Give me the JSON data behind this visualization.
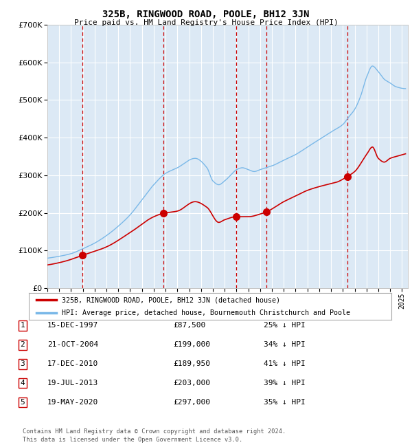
{
  "title": "325B, RINGWOOD ROAD, POOLE, BH12 3JN",
  "subtitle": "Price paid vs. HM Land Registry's House Price Index (HPI)",
  "footer1": "Contains HM Land Registry data © Crown copyright and database right 2024.",
  "footer2": "This data is licensed under the Open Government Licence v3.0.",
  "legend_line1": "325B, RINGWOOD ROAD, POOLE, BH12 3JN (detached house)",
  "legend_line2": "HPI: Average price, detached house, Bournemouth Christchurch and Poole",
  "sales": [
    {
      "num": 1,
      "date": "15-DEC-1997",
      "price": 87500,
      "pct": "25% ↓ HPI",
      "year": 1997.96
    },
    {
      "num": 2,
      "date": "21-OCT-2004",
      "price": 199000,
      "pct": "34% ↓ HPI",
      "year": 2004.8
    },
    {
      "num": 3,
      "date": "17-DEC-2010",
      "price": 189950,
      "pct": "41% ↓ HPI",
      "year": 2010.96
    },
    {
      "num": 4,
      "date": "19-JUL-2013",
      "price": 203000,
      "pct": "39% ↓ HPI",
      "year": 2013.54
    },
    {
      "num": 5,
      "date": "19-MAY-2020",
      "price": 297000,
      "pct": "35% ↓ HPI",
      "year": 2020.38
    }
  ],
  "hpi_color": "#7ab8e8",
  "sale_color": "#cc0000",
  "bg_color": "#dce9f5",
  "grid_color": "#ffffff",
  "vline_color": "#cc0000",
  "ylim": [
    0,
    700000
  ],
  "xlim_start": 1995.0,
  "xlim_end": 2025.5,
  "hpi_knots_x": [
    1995.0,
    1996.0,
    1997.0,
    1998.0,
    1999.0,
    2000.0,
    2001.0,
    2002.0,
    2003.0,
    2004.0,
    2005.0,
    2006.0,
    2007.5,
    2008.5,
    2009.0,
    2009.5,
    2010.0,
    2010.5,
    2011.0,
    2011.5,
    2012.0,
    2012.5,
    2013.0,
    2013.5,
    2014.0,
    2015.0,
    2016.0,
    2017.0,
    2018.0,
    2019.0,
    2020.0,
    2020.5,
    2021.0,
    2021.5,
    2022.0,
    2022.5,
    2023.0,
    2023.5,
    2024.0,
    2024.5,
    2025.3
  ],
  "hpi_knots_y": [
    80000,
    85000,
    92000,
    105000,
    120000,
    140000,
    165000,
    195000,
    235000,
    275000,
    305000,
    320000,
    345000,
    320000,
    285000,
    275000,
    285000,
    300000,
    315000,
    320000,
    315000,
    310000,
    315000,
    320000,
    325000,
    340000,
    355000,
    375000,
    395000,
    415000,
    435000,
    455000,
    475000,
    510000,
    560000,
    590000,
    575000,
    555000,
    545000,
    535000,
    530000
  ],
  "red_knots_x": [
    1995.0,
    1996.5,
    1997.96,
    2000.0,
    2002.0,
    2004.0,
    2004.8,
    2006.0,
    2007.5,
    2008.5,
    2009.5,
    2010.0,
    2010.96,
    2012.0,
    2013.0,
    2013.54,
    2015.0,
    2016.0,
    2017.0,
    2018.0,
    2019.0,
    2019.5,
    2020.38,
    2021.0,
    2022.0,
    2022.5,
    2023.0,
    2023.5,
    2024.0,
    2024.5,
    2025.3
  ],
  "red_knots_y": [
    62000,
    72000,
    87500,
    110000,
    148000,
    190000,
    199000,
    205000,
    230000,
    215000,
    175000,
    182000,
    189950,
    190000,
    197000,
    203000,
    230000,
    245000,
    260000,
    270000,
    278000,
    282000,
    297000,
    310000,
    355000,
    375000,
    345000,
    335000,
    345000,
    350000,
    357000
  ]
}
